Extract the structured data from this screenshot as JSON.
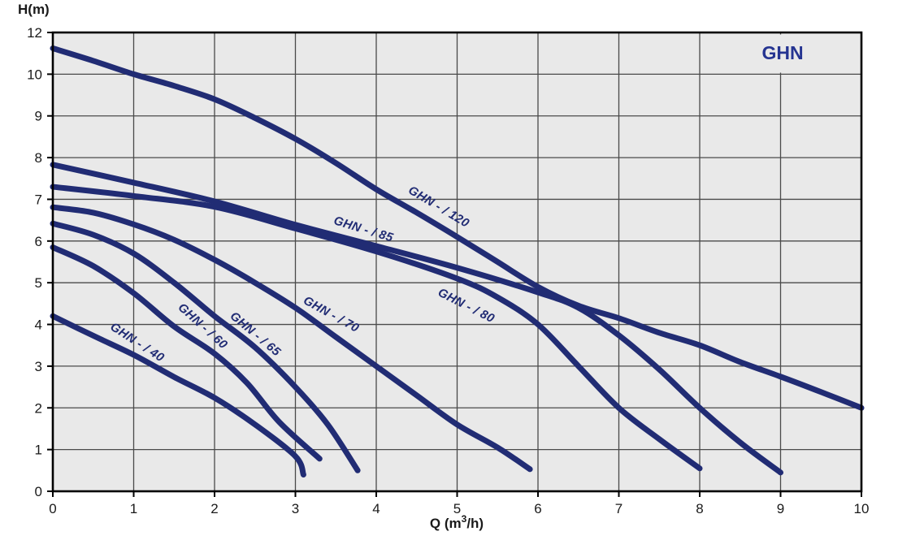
{
  "title": "GHN",
  "axes": {
    "y_title": "H(m)",
    "x_title_prefix": "Q (m",
    "x_title_sup": "3",
    "x_title_suffix": "/h)",
    "y_tick_labels": [
      "12",
      "10",
      "9",
      "8",
      "7",
      "6",
      "5",
      "4",
      "3",
      "2",
      "1",
      "0"
    ],
    "x_tick_labels": [
      "0",
      "1",
      "2",
      "3",
      "4",
      "5",
      "6",
      "7",
      "8",
      "9",
      "10"
    ]
  },
  "colors": {
    "plot_bg": "#e9e9e9",
    "grid": "#4a4a4a",
    "border": "#000000",
    "curve": "#212c74",
    "curve_label": "#212c74",
    "title": "#253491",
    "axis_text": "#1a1a1a"
  },
  "chart_data": {
    "type": "line",
    "title": "GHN",
    "xlabel": "Q (m3/h)",
    "ylabel": "H(m)",
    "x_range": [
      0,
      10
    ],
    "y_gridline_labels_top_to_bottom": [
      "12",
      "10",
      "9",
      "8",
      "7",
      "6",
      "5",
      "4",
      "3",
      "2",
      "1",
      "0"
    ],
    "grid": true,
    "series": [
      {
        "name": "GHN - / 40",
        "label": {
          "q": 1.04,
          "h": 3.56,
          "angle": 33
        },
        "points": [
          [
            0,
            4.2
          ],
          [
            0.5,
            3.73
          ],
          [
            1,
            3.27
          ],
          [
            1.5,
            2.74
          ],
          [
            2,
            2.24
          ],
          [
            2.5,
            1.6
          ],
          [
            3,
            0.84
          ],
          [
            3.1,
            0.4
          ]
        ]
      },
      {
        "name": "GHN - / 60",
        "label": {
          "q": 1.85,
          "h": 3.95,
          "angle": 42
        },
        "points": [
          [
            0,
            5.85
          ],
          [
            0.5,
            5.4
          ],
          [
            1,
            4.75
          ],
          [
            1.5,
            3.95
          ],
          [
            2,
            3.3
          ],
          [
            2.4,
            2.6
          ],
          [
            2.8,
            1.66
          ],
          [
            3.3,
            0.78
          ]
        ]
      },
      {
        "name": "GHN - / 65",
        "label": {
          "q": 2.5,
          "h": 3.76,
          "angle": 40
        },
        "points": [
          [
            0,
            6.42
          ],
          [
            0.5,
            6.15
          ],
          [
            1,
            5.7
          ],
          [
            1.5,
            5.0
          ],
          [
            2,
            4.2
          ],
          [
            2.5,
            3.45
          ],
          [
            3,
            2.5
          ],
          [
            3.4,
            1.6
          ],
          [
            3.77,
            0.5
          ]
        ]
      },
      {
        "name": "GHN - / 70",
        "label": {
          "q": 3.44,
          "h": 4.23,
          "angle": 29
        },
        "points": [
          [
            0,
            6.81
          ],
          [
            0.5,
            6.68
          ],
          [
            1,
            6.4
          ],
          [
            1.5,
            6.03
          ],
          [
            2,
            5.55
          ],
          [
            2.5,
            5.0
          ],
          [
            3,
            4.4
          ],
          [
            3.5,
            3.7
          ],
          [
            4,
            3.0
          ],
          [
            4.5,
            2.3
          ],
          [
            5,
            1.6
          ],
          [
            5.5,
            1.05
          ],
          [
            5.9,
            0.53
          ]
        ]
      },
      {
        "name": "GHN - / 80",
        "label": {
          "q": 5.11,
          "h": 4.44,
          "angle": 27
        },
        "points": [
          [
            0,
            7.3
          ],
          [
            1,
            7.08
          ],
          [
            2,
            6.82
          ],
          [
            3,
            6.3
          ],
          [
            4,
            5.75
          ],
          [
            5,
            5.1
          ],
          [
            5.5,
            4.65
          ],
          [
            6,
            4.0
          ],
          [
            6.5,
            3.0
          ],
          [
            7,
            2.0
          ],
          [
            7.5,
            1.25
          ],
          [
            8,
            0.55
          ]
        ]
      },
      {
        "name": "GHN - / 85",
        "label": {
          "q": 3.84,
          "h": 6.27,
          "angle": 17
        },
        "points": [
          [
            0,
            7.83
          ],
          [
            1,
            7.4
          ],
          [
            2,
            6.95
          ],
          [
            3,
            6.39
          ],
          [
            4,
            5.88
          ],
          [
            5,
            5.36
          ],
          [
            6,
            4.77
          ],
          [
            6.5,
            4.4
          ],
          [
            7,
            3.74
          ],
          [
            7.5,
            2.92
          ],
          [
            8,
            2.0
          ],
          [
            8.5,
            1.17
          ],
          [
            9,
            0.45
          ]
        ]
      },
      {
        "name": "GHN - / 120",
        "label": {
          "q": 4.77,
          "h": 6.81,
          "angle": 31
        },
        "points": [
          [
            0,
            10.62
          ],
          [
            0.5,
            10.32
          ],
          [
            1,
            10.0
          ],
          [
            1.5,
            9.72
          ],
          [
            2,
            9.4
          ],
          [
            2.5,
            8.95
          ],
          [
            3,
            8.45
          ],
          [
            3.5,
            7.87
          ],
          [
            4,
            7.24
          ],
          [
            4.5,
            6.68
          ],
          [
            5,
            6.1
          ],
          [
            5.5,
            5.5
          ],
          [
            6,
            4.9
          ],
          [
            6.5,
            4.45
          ],
          [
            7,
            4.15
          ],
          [
            7.5,
            3.8
          ],
          [
            8,
            3.5
          ],
          [
            8.5,
            3.1
          ],
          [
            9,
            2.75
          ],
          [
            9.5,
            2.38
          ],
          [
            10,
            2.0
          ]
        ]
      }
    ]
  }
}
